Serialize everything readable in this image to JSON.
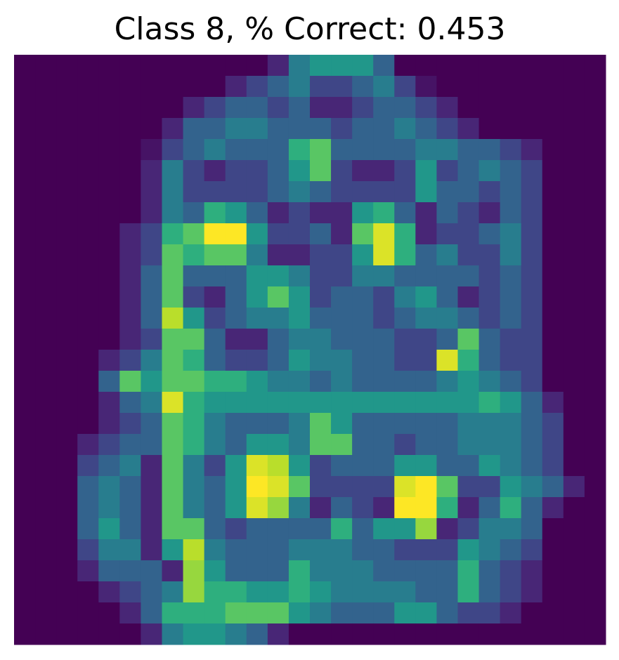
{
  "chart_data": {
    "type": "heatmap",
    "title": "Class 8, % Correct: 0.453",
    "colormap": "viridis",
    "values": [
      [
        0,
        0,
        0,
        0,
        0,
        0,
        0,
        0,
        0,
        0,
        0,
        0,
        0.1,
        0.4,
        0.5,
        0.5,
        0.5,
        0.3,
        0,
        0,
        0,
        0,
        0,
        0,
        0,
        0,
        0,
        0
      ],
      [
        0,
        0,
        0,
        0,
        0,
        0,
        0,
        0,
        0,
        0,
        0.1,
        0.2,
        0.3,
        0.4,
        0.2,
        0.2,
        0.3,
        0.4,
        0.2,
        0.05,
        0,
        0,
        0,
        0,
        0,
        0,
        0,
        0
      ],
      [
        0,
        0,
        0,
        0,
        0,
        0,
        0,
        0,
        0.1,
        0.2,
        0.3,
        0.3,
        0.2,
        0.3,
        0.1,
        0.1,
        0.2,
        0.3,
        0.3,
        0.2,
        0.1,
        0,
        0,
        0,
        0,
        0,
        0,
        0
      ],
      [
        0,
        0,
        0,
        0,
        0,
        0,
        0,
        0.1,
        0.3,
        0.3,
        0.4,
        0.4,
        0.3,
        0.3,
        0.3,
        0.2,
        0.3,
        0.3,
        0.4,
        0.3,
        0.2,
        0.1,
        0,
        0,
        0,
        0,
        0,
        0
      ],
      [
        0,
        0,
        0,
        0,
        0,
        0,
        0.05,
        0.2,
        0.3,
        0.4,
        0.3,
        0.3,
        0.3,
        0.6,
        0.7,
        0.3,
        0.3,
        0.3,
        0.3,
        0.4,
        0.4,
        0.3,
        0.3,
        0.2,
        0.1,
        0,
        0,
        0
      ],
      [
        0,
        0,
        0,
        0,
        0,
        0,
        0.1,
        0.4,
        0.2,
        0.1,
        0.2,
        0.2,
        0.3,
        0.5,
        0.7,
        0.2,
        0.1,
        0.1,
        0.2,
        0.5,
        0.2,
        0.3,
        0.4,
        0.3,
        0.2,
        0,
        0,
        0
      ],
      [
        0,
        0,
        0,
        0,
        0,
        0,
        0.1,
        0.4,
        0.2,
        0.2,
        0.2,
        0.2,
        0.3,
        0.4,
        0.3,
        0.2,
        0.2,
        0.2,
        0.2,
        0.5,
        0.3,
        0.3,
        0.2,
        0.3,
        0.2,
        0,
        0,
        0
      ],
      [
        0,
        0,
        0,
        0,
        0,
        0,
        0.1,
        0.4,
        0.3,
        0.6,
        0.5,
        0.3,
        0.1,
        0.2,
        0.1,
        0.1,
        0.5,
        0.6,
        0.3,
        0.1,
        0.3,
        0.2,
        0.1,
        0.3,
        0.2,
        0,
        0,
        0
      ],
      [
        0,
        0,
        0,
        0,
        0,
        0.1,
        0.2,
        0.6,
        0.7,
        0.95,
        0.95,
        0.5,
        0.2,
        0.2,
        0.3,
        0.1,
        0.7,
        0.9,
        0.6,
        0.1,
        0.2,
        0.2,
        0.3,
        0.4,
        0.2,
        0,
        0,
        0
      ],
      [
        0,
        0,
        0,
        0,
        0,
        0.1,
        0.2,
        0.7,
        0.6,
        0.7,
        0.7,
        0.4,
        0.1,
        0.1,
        0.2,
        0.2,
        0.5,
        0.9,
        0.6,
        0.3,
        0.4,
        0.2,
        0.2,
        0.4,
        0.2,
        0,
        0,
        0
      ],
      [
        0,
        0,
        0,
        0,
        0,
        0.1,
        0.3,
        0.7,
        0.3,
        0.3,
        0.3,
        0.5,
        0.5,
        0.4,
        0.2,
        0.2,
        0.4,
        0.4,
        0.3,
        0.3,
        0.3,
        0.3,
        0.2,
        0.3,
        0.2,
        0,
        0,
        0
      ],
      [
        0,
        0,
        0,
        0,
        0,
        0.1,
        0.3,
        0.7,
        0.2,
        0.1,
        0.3,
        0.5,
        0.7,
        0.5,
        0.2,
        0.3,
        0.3,
        0.2,
        0.4,
        0.5,
        0.3,
        0.1,
        0.2,
        0.3,
        0.2,
        0,
        0,
        0
      ],
      [
        0,
        0,
        0,
        0,
        0,
        0.1,
        0.3,
        0.85,
        0.5,
        0.2,
        0.3,
        0.4,
        0.4,
        0.5,
        0.3,
        0.3,
        0.3,
        0.2,
        0.3,
        0.4,
        0.4,
        0.3,
        0.2,
        0.3,
        0.2,
        0,
        0,
        0
      ],
      [
        0,
        0,
        0,
        0,
        0,
        0.1,
        0.2,
        0.7,
        0.7,
        0.3,
        0.1,
        0.1,
        0.3,
        0.4,
        0.4,
        0.3,
        0.3,
        0.3,
        0.2,
        0.2,
        0.3,
        0.7,
        0.3,
        0.2,
        0.2,
        0,
        0,
        0
      ],
      [
        0,
        0,
        0,
        0,
        0.1,
        0.2,
        0.4,
        0.7,
        0.6,
        0.3,
        0.2,
        0.2,
        0.3,
        0.5,
        0.4,
        0.4,
        0.3,
        0.3,
        0.2,
        0.2,
        0.9,
        0.6,
        0.3,
        0.2,
        0.2,
        0,
        0,
        0
      ],
      [
        0,
        0,
        0,
        0,
        0.3,
        0.7,
        0.5,
        0.7,
        0.7,
        0.6,
        0.6,
        0.5,
        0.4,
        0.4,
        0.3,
        0.4,
        0.3,
        0.3,
        0.3,
        0.3,
        0.4,
        0.5,
        0.4,
        0.3,
        0.2,
        0,
        0,
        0
      ],
      [
        0,
        0,
        0,
        0,
        0.1,
        0.3,
        0.4,
        0.9,
        0.6,
        0.5,
        0.5,
        0.5,
        0.5,
        0.5,
        0.5,
        0.5,
        0.5,
        0.5,
        0.5,
        0.5,
        0.5,
        0.5,
        0.6,
        0.5,
        0.3,
        0.1,
        0,
        0
      ],
      [
        0,
        0,
        0,
        0,
        0.1,
        0.2,
        0.3,
        0.7,
        0.6,
        0.4,
        0.3,
        0.3,
        0.3,
        0.4,
        0.7,
        0.5,
        0.3,
        0.3,
        0.3,
        0.3,
        0.3,
        0.4,
        0.4,
        0.4,
        0.3,
        0.2,
        0,
        0
      ],
      [
        0,
        0,
        0,
        0.1,
        0.2,
        0.3,
        0.3,
        0.7,
        0.6,
        0.4,
        0.3,
        0.5,
        0.5,
        0.4,
        0.7,
        0.7,
        0.3,
        0.3,
        0.2,
        0.3,
        0.3,
        0.4,
        0.4,
        0.4,
        0.3,
        0.2,
        0,
        0
      ],
      [
        0,
        0,
        0,
        0.2,
        0.3,
        0.4,
        0.1,
        0.7,
        0.4,
        0.2,
        0.5,
        0.9,
        0.85,
        0.5,
        0.2,
        0.3,
        0.3,
        0.3,
        0.5,
        0.5,
        0.3,
        0.3,
        0.5,
        0.4,
        0.3,
        0.2,
        0,
        0
      ],
      [
        0,
        0,
        0,
        0.3,
        0.4,
        0.3,
        0.1,
        0.7,
        0.4,
        0.3,
        0.5,
        0.95,
        0.9,
        0.7,
        0.2,
        0.2,
        0.2,
        0.2,
        0.9,
        0.95,
        0.7,
        0.2,
        0.2,
        0.5,
        0.4,
        0.3,
        0.1,
        0
      ],
      [
        0,
        0,
        0,
        0.3,
        0.4,
        0.3,
        0.1,
        0.7,
        0.4,
        0.3,
        0.5,
        0.9,
        0.8,
        0.4,
        0.1,
        0.3,
        0.2,
        0.1,
        0.95,
        0.95,
        0.6,
        0.1,
        0.3,
        0.6,
        0.3,
        0.1,
        0,
        0
      ],
      [
        0,
        0,
        0,
        0.3,
        0.5,
        0.3,
        0.1,
        0.7,
        0.7,
        0.3,
        0.2,
        0.3,
        0.3,
        0.3,
        0.3,
        0.6,
        0.3,
        0.5,
        0.5,
        0.8,
        0.1,
        0.2,
        0.4,
        0.4,
        0.3,
        0,
        0,
        0
      ],
      [
        0,
        0,
        0,
        0.2,
        0.4,
        0.4,
        0.1,
        0.5,
        0.85,
        0.4,
        0.3,
        0.3,
        0.3,
        0.4,
        0.4,
        0.4,
        0.3,
        0.3,
        0.2,
        0.2,
        0.2,
        0.5,
        0.4,
        0.3,
        0.2,
        0,
        0,
        0
      ],
      [
        0,
        0,
        0,
        0.1,
        0.3,
        0.3,
        0.3,
        0.1,
        0.8,
        0.5,
        0.3,
        0.3,
        0.3,
        0.6,
        0.4,
        0.4,
        0.4,
        0.3,
        0.3,
        0.3,
        0.3,
        0.6,
        0.3,
        0.2,
        0.1,
        0,
        0,
        0
      ],
      [
        0,
        0,
        0,
        0,
        0.1,
        0.2,
        0.3,
        0.4,
        0.8,
        0.6,
        0.6,
        0.5,
        0.5,
        0.6,
        0.5,
        0.4,
        0.4,
        0.4,
        0.4,
        0.3,
        0.3,
        0.6,
        0.3,
        0.2,
        0.1,
        0,
        0,
        0
      ],
      [
        0,
        0,
        0,
        0,
        0,
        0.1,
        0.3,
        0.6,
        0.6,
        0.6,
        0.7,
        0.7,
        0.7,
        0.5,
        0.4,
        0.3,
        0.3,
        0.3,
        0.5,
        0.5,
        0.3,
        0.2,
        0.2,
        0.1,
        0,
        0,
        0,
        0
      ],
      [
        0,
        0,
        0,
        0,
        0,
        0,
        0.1,
        0.4,
        0.5,
        0.5,
        0.4,
        0.3,
        0.1,
        0,
        0,
        0,
        0,
        0,
        0,
        0,
        0,
        0,
        0,
        0,
        0,
        0,
        0,
        0
      ]
    ]
  }
}
